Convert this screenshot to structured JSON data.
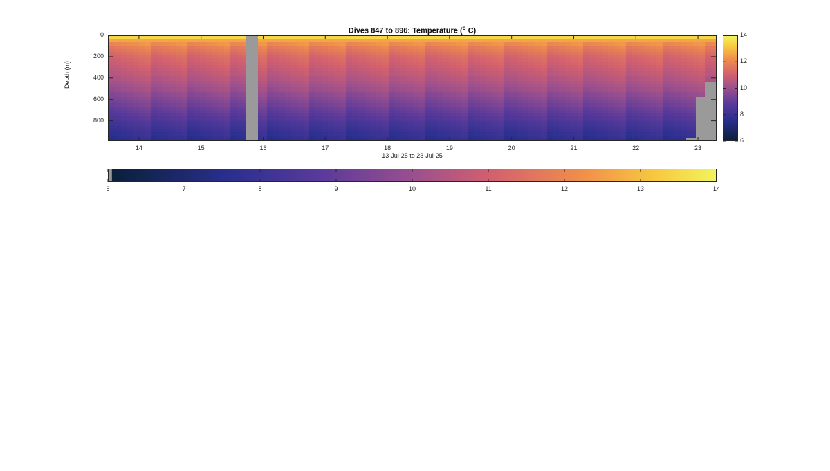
{
  "chart_data": {
    "type": "heatmap",
    "title_prefix": "Dives 847 to 896: Temperature (",
    "title_sup": "o",
    "title_suffix": " C)",
    "ylabel": "Depth (m)",
    "xlabel": "13-Jul-25 to 23-Jul-25",
    "x_range": [
      13.5,
      23.3
    ],
    "y_range": [
      0,
      990
    ],
    "y_reversed": true,
    "x_ticks": [
      14,
      15,
      16,
      17,
      18,
      19,
      20,
      21,
      22,
      23
    ],
    "y_ticks": [
      0,
      200,
      400,
      600,
      800
    ],
    "color_range": [
      6,
      14
    ],
    "colorbar_ticks_vertical": [
      6,
      8,
      10,
      12,
      14
    ],
    "colorbar_ticks_horizontal": [
      6,
      7,
      8,
      9,
      10,
      11,
      12,
      13,
      14
    ],
    "colormap": [
      "#0b1f3a",
      "#2a2f8f",
      "#5a3a9a",
      "#9a4f8f",
      "#d2606f",
      "#f08f4a",
      "#f7c840",
      "#f2f35e"
    ],
    "no_data_color": "#9a9a9a",
    "profile": {
      "depth": [
        0,
        20,
        50,
        100,
        200,
        300,
        400,
        500,
        600,
        700,
        800,
        900,
        990
      ],
      "temperature": [
        13.8,
        13.0,
        12.0,
        11.4,
        10.8,
        10.4,
        10.0,
        9.5,
        9.0,
        8.5,
        8.0,
        7.5,
        7.2
      ]
    },
    "no_data": [
      {
        "x": [
          15.7,
          15.9
        ],
        "depth": [
          0,
          990
        ]
      },
      {
        "x": [
          22.8,
          23.0
        ],
        "depth": [
          955,
          990
        ]
      },
      {
        "x": [
          22.95,
          23.15
        ],
        "depth": [
          570,
          990
        ]
      },
      {
        "x": [
          23.1,
          23.3
        ],
        "depth": [
          430,
          990
        ]
      }
    ]
  }
}
